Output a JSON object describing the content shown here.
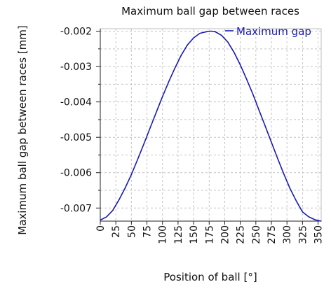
{
  "chart_data": {
    "type": "line",
    "title": "Maximum ball gap between races",
    "xlabel": "Position of ball [°]",
    "ylabel": "Maximum ball gap between races [mm]",
    "xlim": [
      0,
      355
    ],
    "ylim": [
      -0.00737,
      -0.00193
    ],
    "x_ticks": [
      0,
      25,
      50,
      75,
      100,
      125,
      150,
      175,
      200,
      225,
      250,
      275,
      300,
      325,
      350
    ],
    "y_ticks": [
      -0.007,
      -0.006,
      -0.005,
      -0.004,
      -0.003,
      -0.002
    ],
    "grid": true,
    "legend_position": "top-right",
    "series": [
      {
        "name": "Maximum gap",
        "color": "#1a1ab4",
        "x": [
          0,
          10,
          20,
          30,
          40,
          50,
          60,
          70,
          80,
          90,
          100,
          110,
          120,
          130,
          140,
          150,
          160,
          170,
          178,
          185,
          195,
          205,
          215,
          225,
          235,
          245,
          255,
          265,
          275,
          285,
          295,
          305,
          315,
          325,
          335,
          345,
          355
        ],
        "y": [
          -0.00734,
          -0.00725,
          -0.00707,
          -0.00677,
          -0.00643,
          -0.00605,
          -0.00563,
          -0.00519,
          -0.00474,
          -0.00429,
          -0.00385,
          -0.00343,
          -0.00304,
          -0.00268,
          -0.00239,
          -0.00219,
          -0.00206,
          -0.00202,
          -0.002,
          -0.00202,
          -0.00212,
          -0.00231,
          -0.0026,
          -0.00295,
          -0.00335,
          -0.00377,
          -0.00423,
          -0.00468,
          -0.00514,
          -0.0056,
          -0.00604,
          -0.00645,
          -0.0068,
          -0.00711,
          -0.00725,
          -0.00733,
          -0.00737
        ]
      }
    ]
  }
}
